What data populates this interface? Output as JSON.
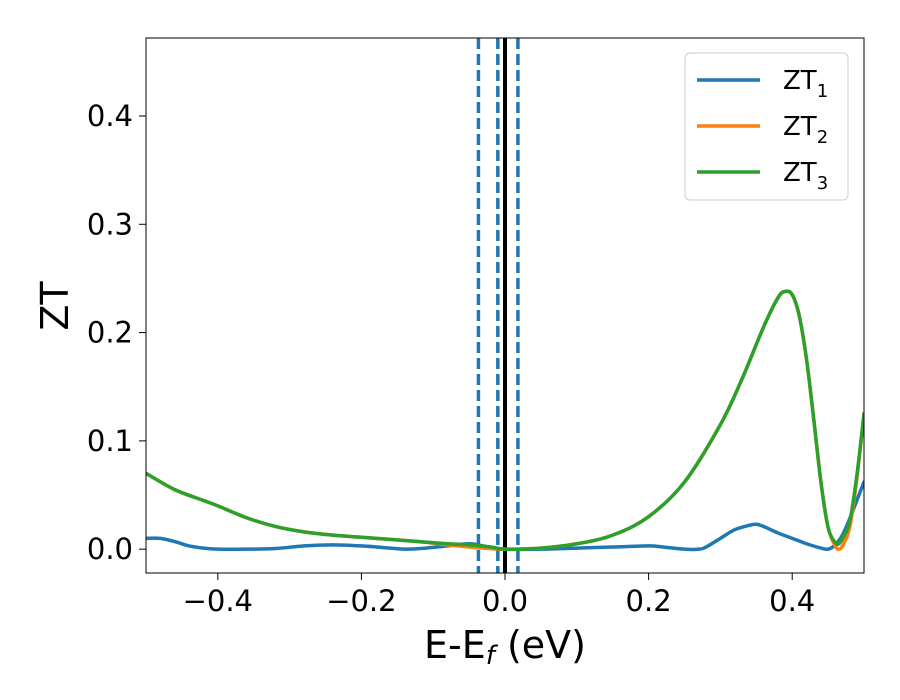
{
  "chart_data": {
    "type": "line",
    "title": "",
    "xlabel": {
      "main": "E-E",
      "sub": "f",
      "unit": " (eV)"
    },
    "ylabel": "ZT",
    "xlim": [
      -0.5,
      0.5
    ],
    "ylim": [
      -0.022,
      0.472
    ],
    "xticks": [
      -0.4,
      -0.2,
      0.0,
      0.2,
      0.4
    ],
    "xtick_labels": [
      "−0.4",
      "−0.2",
      "0.0",
      "0.2",
      "0.4"
    ],
    "yticks": [
      0.0,
      0.1,
      0.2,
      0.3,
      0.4
    ],
    "ytick_labels": [
      "0.0",
      "0.1",
      "0.2",
      "0.3",
      "0.4"
    ],
    "grid": false,
    "legend_position": "top-right",
    "series": [
      {
        "name": "ZT",
        "name_sub": "1",
        "color": "#1f77b4",
        "x": [
          -0.5,
          -0.48,
          -0.46,
          -0.44,
          -0.42,
          -0.4,
          -0.36,
          -0.32,
          -0.28,
          -0.24,
          -0.2,
          -0.16,
          -0.14,
          -0.12,
          -0.08,
          -0.05,
          -0.03,
          0.0,
          0.05,
          0.1,
          0.15,
          0.2,
          0.22,
          0.25,
          0.27,
          0.28,
          0.3,
          0.32,
          0.34,
          0.35,
          0.36,
          0.38,
          0.4,
          0.42,
          0.44,
          0.45,
          0.46,
          0.47,
          0.48,
          0.49,
          0.5
        ],
        "y": [
          0.01,
          0.01,
          0.007,
          0.003,
          0.001,
          0.0,
          0.0,
          0.0006,
          0.003,
          0.004,
          0.003,
          0.001,
          0.0,
          0.0005,
          0.003,
          0.005,
          0.003,
          0.0,
          0.0,
          0.001,
          0.002,
          0.003,
          0.002,
          0.0,
          0.0,
          0.002,
          0.01,
          0.018,
          0.022,
          0.023,
          0.021,
          0.015,
          0.01,
          0.005,
          0.001,
          0.0,
          0.004,
          0.013,
          0.028,
          0.045,
          0.062
        ]
      },
      {
        "name": "ZT",
        "name_sub": "2",
        "color": "#ff7f0e",
        "x": [
          -0.5,
          -0.46,
          -0.42,
          -0.4,
          -0.36,
          -0.32,
          -0.28,
          -0.24,
          -0.2,
          -0.16,
          -0.12,
          -0.08,
          -0.05,
          -0.02,
          0.0,
          0.05,
          0.1,
          0.15,
          0.2,
          0.25,
          0.3,
          0.33,
          0.36,
          0.38,
          0.39,
          0.4,
          0.41,
          0.42,
          0.43,
          0.44,
          0.45,
          0.46,
          0.465,
          0.47,
          0.48,
          0.49,
          0.5
        ],
        "y": [
          0.07,
          0.055,
          0.045,
          0.04,
          0.029,
          0.021,
          0.016,
          0.013,
          0.011,
          0.009,
          0.007,
          0.004,
          0.002,
          0.0005,
          0.0,
          0.001,
          0.005,
          0.013,
          0.03,
          0.062,
          0.115,
          0.157,
          0.205,
          0.232,
          0.238,
          0.235,
          0.215,
          0.175,
          0.12,
          0.062,
          0.02,
          0.003,
          0.0,
          0.003,
          0.02,
          0.065,
          0.125
        ]
      },
      {
        "name": "ZT",
        "name_sub": "3",
        "color": "#2ca02c",
        "x": [
          -0.5,
          -0.46,
          -0.42,
          -0.4,
          -0.36,
          -0.32,
          -0.28,
          -0.24,
          -0.2,
          -0.16,
          -0.12,
          -0.08,
          -0.05,
          -0.02,
          0.0,
          0.05,
          0.1,
          0.15,
          0.2,
          0.25,
          0.3,
          0.33,
          0.36,
          0.38,
          0.39,
          0.4,
          0.41,
          0.42,
          0.43,
          0.44,
          0.45,
          0.46,
          0.465,
          0.47,
          0.48,
          0.49,
          0.5
        ],
        "y": [
          0.07,
          0.055,
          0.045,
          0.04,
          0.029,
          0.021,
          0.016,
          0.013,
          0.011,
          0.009,
          0.007,
          0.005,
          0.004,
          0.002,
          0.0,
          0.001,
          0.005,
          0.013,
          0.03,
          0.062,
          0.115,
          0.157,
          0.205,
          0.232,
          0.238,
          0.235,
          0.215,
          0.175,
          0.12,
          0.062,
          0.02,
          0.006,
          0.005,
          0.01,
          0.025,
          0.068,
          0.125
        ]
      }
    ],
    "vlines": [
      {
        "x": -0.037,
        "style": "dashed",
        "color": "#1f77b4"
      },
      {
        "x": -0.01,
        "style": "dashed",
        "color": "#1f77b4"
      },
      {
        "x": 0.0,
        "style": "solid",
        "color": "#000000"
      },
      {
        "x": 0.018,
        "style": "dashed",
        "color": "#1f77b4"
      }
    ]
  }
}
